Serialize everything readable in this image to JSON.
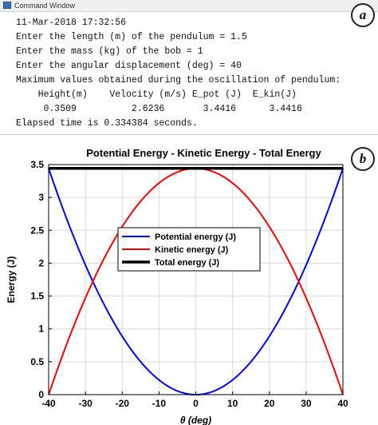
{
  "command_window": {
    "title": "Command Window",
    "badge": "a",
    "lines": [
      "11-Mar-2018 17:32:56",
      "Enter the length (m) of the pendulum = 1.5",
      "Enter the mass (kg) of the bob = 1",
      "Enter the angular displacement (deg) = 40",
      "Maximum values obtained during the oscillation of pendulum:",
      "    Height(m)    Velocity (m/s) E_pot (J)  E_kin(J)",
      "     0.3509          2.6236       3.4416      3.4416",
      "Elapsed time is 0.334384 seconds."
    ]
  },
  "figure": {
    "badge": "b"
  },
  "colors": {
    "potential": "#0000ff",
    "kinetic": "#ff0000",
    "total": "#000000",
    "grid": "#d9d9d9"
  },
  "chart_data": {
    "type": "line",
    "title": "Potential Energy - Kinetic Energy - Total Energy",
    "xlabel": "θ (deg)",
    "ylabel": "Energy (J)",
    "xlim": [
      -40,
      40
    ],
    "ylim": [
      0,
      3.5
    ],
    "xticks": [
      -40,
      -30,
      -20,
      -10,
      0,
      10,
      20,
      30,
      40
    ],
    "yticks": [
      0,
      0.5,
      1,
      1.5,
      2,
      2.5,
      3,
      3.5
    ],
    "grid": true,
    "legend_position": "center",
    "x": [
      -40,
      -35,
      -30,
      -25,
      -20,
      -15,
      -10,
      -5,
      0,
      5,
      10,
      15,
      20,
      25,
      30,
      35,
      40
    ],
    "series": [
      {
        "name": "Potential energy (J)",
        "color_key": "potential",
        "values": [
          3.4416,
          2.6799,
          1.9715,
          1.3646,
          0.8873,
          0.5014,
          0.2235,
          0.056,
          0.0,
          0.056,
          0.2235,
          0.5014,
          0.8873,
          1.3646,
          1.9715,
          2.6799,
          3.4416
        ]
      },
      {
        "name": "Kinetic energy (J)",
        "color_key": "kinetic",
        "values": [
          0.0,
          0.7617,
          1.4701,
          2.077,
          2.5543,
          2.9402,
          3.2181,
          3.3856,
          3.4416,
          3.3856,
          3.2181,
          2.9402,
          2.5543,
          2.077,
          1.4701,
          0.7617,
          0.0
        ]
      },
      {
        "name": "Total energy (J)",
        "color_key": "total",
        "values": [
          3.4416,
          3.4416,
          3.4416,
          3.4416,
          3.4416,
          3.4416,
          3.4416,
          3.4416,
          3.4416,
          3.4416,
          3.4416,
          3.4416,
          3.4416,
          3.4416,
          3.4416,
          3.4416,
          3.4416
        ]
      }
    ]
  }
}
